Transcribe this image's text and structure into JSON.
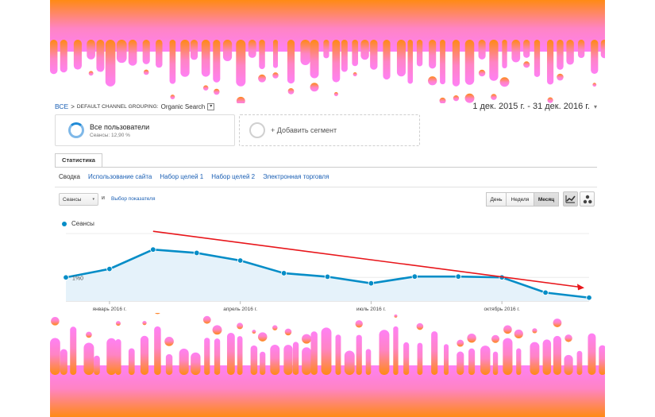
{
  "breadcrumb": {
    "root": "ВСЕ",
    "separator": ">",
    "path": "DEFAULT CHANNEL GROUPING:",
    "value": "Organic Search",
    "dropdown_glyph": "▾"
  },
  "date_range": {
    "label": "1 дек. 2015 г. - 31 дек. 2016 г.",
    "caret": "▾"
  },
  "segments": [
    {
      "title": "Все пользователи",
      "subtitle": "Сеансы: 12,90 %"
    },
    {
      "title": "+ Добавить сегмент"
    }
  ],
  "tabs": {
    "active": "Статистика"
  },
  "subnav": [
    "Сводка",
    "Использование сайта",
    "Набор целей 1",
    "Набор целей 2",
    "Электронная торговля"
  ],
  "metric_select": {
    "value": "Сеансы",
    "caret": "▾",
    "and": "и",
    "picker": "Выбор показателя"
  },
  "period_buttons": [
    "День",
    "Неделя",
    "Месяц"
  ],
  "period_selected": "Месяц",
  "view_icons": [
    "line-chart-icon",
    "motion-chart-icon"
  ],
  "colors": {
    "series": "#058dc7",
    "area": "#e5f2fa",
    "trend_arrow": "#e8161b",
    "link": "#1a5fb4",
    "decor_orange": "#ff8a14",
    "decor_pink": "#ff80f5"
  },
  "chart_data": {
    "type": "area",
    "series": [
      {
        "name": "Сеансы",
        "values": [
          0.0,
          10,
          33,
          29,
          20,
          5,
          0.8,
          -7,
          1,
          1,
          0,
          -18,
          -24
        ]
      }
    ],
    "x_ticks": [
      "январь 2016 г.",
      "апрель 2016 г.",
      "июль 2016 г.",
      "октябрь 2016 г."
    ],
    "y_tick_labels": [
      "1%0"
    ],
    "ylim": [
      -28,
      52
    ],
    "grid": true,
    "legend": "top-left",
    "annotation": {
      "type": "trend-arrow",
      "direction": "down"
    }
  }
}
